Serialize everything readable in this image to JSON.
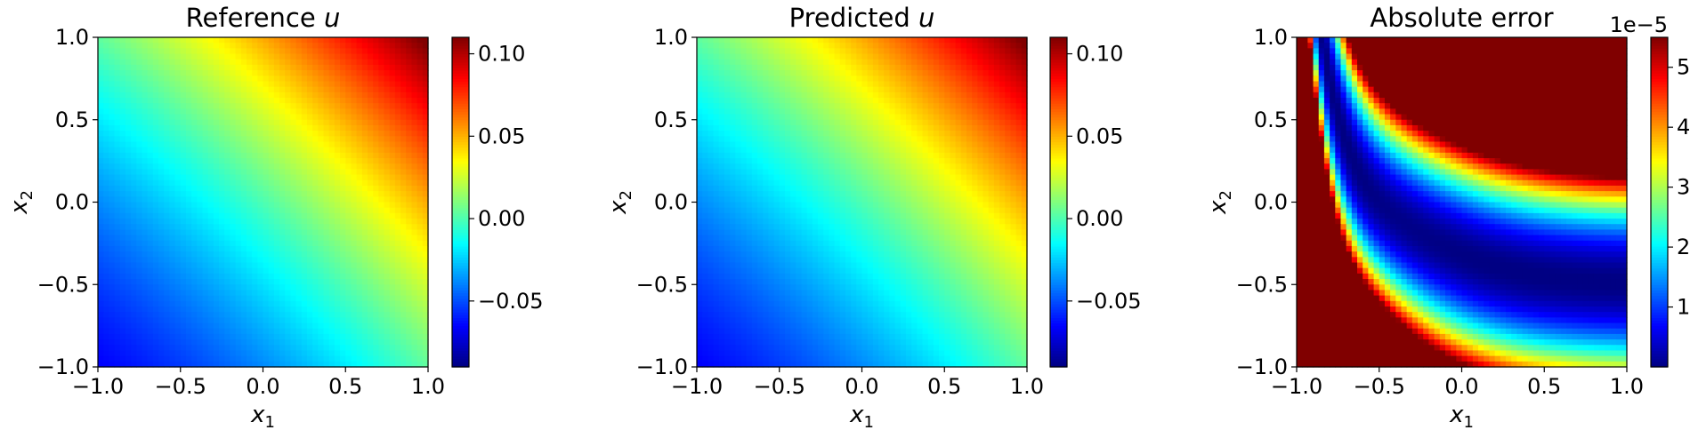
{
  "chart_data": [
    {
      "type": "heatmap",
      "title": "Reference ",
      "title_var": "u",
      "xlabel": "x",
      "xlabel_sub": "1",
      "ylabel": "x",
      "ylabel_sub": "2",
      "xlim": [
        -1.0,
        1.0
      ],
      "ylim": [
        -1.0,
        1.0
      ],
      "xticks": [
        "−1.0",
        "−0.5",
        "0.0",
        "0.5",
        "1.0"
      ],
      "yticks": [
        "−1.0",
        "−0.5",
        "0.0",
        "0.5",
        "1.0"
      ],
      "colormap": "jet",
      "field": "solution",
      "colorbar": {
        "range": [
          -0.09,
          0.11
        ],
        "ticks": [
          -0.05,
          0.0,
          0.05,
          0.1
        ],
        "tick_labels": [
          "−0.05",
          "0.00",
          "0.05",
          "0.10"
        ],
        "offset_text": ""
      }
    },
    {
      "type": "heatmap",
      "title": "Predicted ",
      "title_var": "u",
      "xlabel": "x",
      "xlabel_sub": "1",
      "ylabel": "x",
      "ylabel_sub": "2",
      "xlim": [
        -1.0,
        1.0
      ],
      "ylim": [
        -1.0,
        1.0
      ],
      "xticks": [
        "−1.0",
        "−0.5",
        "0.0",
        "0.5",
        "1.0"
      ],
      "yticks": [
        "−1.0",
        "−0.5",
        "0.0",
        "0.5",
        "1.0"
      ],
      "colormap": "jet",
      "field": "solution",
      "colorbar": {
        "range": [
          -0.09,
          0.11
        ],
        "ticks": [
          -0.05,
          0.0,
          0.05,
          0.1
        ],
        "tick_labels": [
          "−0.05",
          "0.00",
          "0.05",
          "0.10"
        ],
        "offset_text": ""
      }
    },
    {
      "type": "heatmap",
      "title": "Absolute error",
      "title_var": "",
      "xlabel": "x",
      "xlabel_sub": "1",
      "ylabel": "x",
      "ylabel_sub": "2",
      "xlim": [
        -1.0,
        1.0
      ],
      "ylim": [
        -1.0,
        1.0
      ],
      "xticks": [
        "−1.0",
        "−0.5",
        "0.0",
        "0.5",
        "1.0"
      ],
      "yticks": [
        "−1.0",
        "−0.5",
        "0.0",
        "0.5",
        "1.0"
      ],
      "colormap": "jet",
      "field": "error",
      "colorbar": {
        "range": [
          0.0,
          5.5
        ],
        "ticks": [
          1,
          2,
          3,
          4,
          5
        ],
        "tick_labels": [
          "1",
          "2",
          "3",
          "4",
          "5"
        ],
        "offset_text": "1e−5"
      }
    }
  ]
}
